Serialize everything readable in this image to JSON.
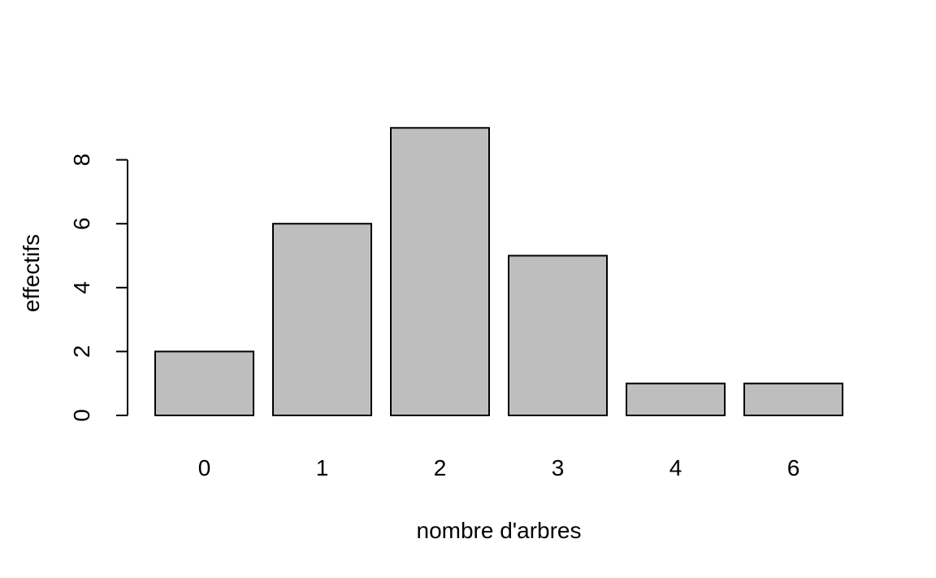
{
  "chart_data": {
    "type": "bar",
    "categories": [
      "0",
      "1",
      "2",
      "3",
      "4",
      "6"
    ],
    "values": [
      2,
      6,
      9,
      5,
      1,
      1
    ],
    "xlabel": "nombre d'arbres",
    "ylabel": "effectifs",
    "ylim": [
      0,
      9
    ],
    "yticks": [
      0,
      2,
      4,
      6,
      8
    ],
    "grid": false,
    "bar_color": "#bebebe",
    "edge_color": "#000000"
  }
}
